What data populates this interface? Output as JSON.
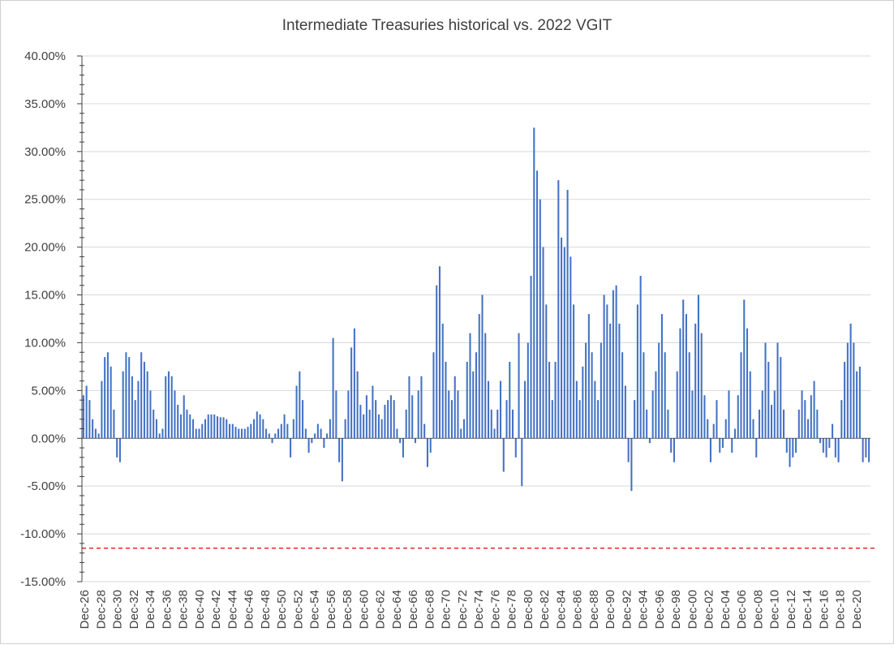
{
  "chart_data": {
    "type": "bar",
    "title": "Intermediate Treasuries historical vs. 2022 VGIT",
    "xlabel": "",
    "ylabel": "",
    "ylim": [
      -15,
      40
    ],
    "y_ticks": [
      "40.00%",
      "35.00%",
      "30.00%",
      "25.00%",
      "20.00%",
      "15.00%",
      "10.00%",
      "5.00%",
      "0.00%",
      "-5.00%",
      "-10.00%",
      "-15.00%"
    ],
    "x_tick_labels": [
      "Dec-26",
      "Dec-28",
      "Dec-30",
      "Dec-32",
      "Dec-34",
      "Dec-36",
      "Dec-38",
      "Dec-40",
      "Dec-42",
      "Dec-44",
      "Dec-46",
      "Dec-48",
      "Dec-50",
      "Dec-52",
      "Dec-54",
      "Dec-56",
      "Dec-58",
      "Dec-60",
      "Dec-62",
      "Dec-64",
      "Dec-66",
      "Dec-68",
      "Dec-70",
      "Dec-72",
      "Dec-74",
      "Dec-76",
      "Dec-78",
      "Dec-80",
      "Dec-82",
      "Dec-84",
      "Dec-86",
      "Dec-88",
      "Dec-90",
      "Dec-92",
      "Dec-94",
      "Dec-96",
      "Dec-98",
      "Dec-00",
      "Dec-02",
      "Dec-04",
      "Dec-06",
      "Dec-08",
      "Dec-10",
      "Dec-12",
      "Dec-14",
      "Dec-16",
      "Dec-18",
      "Dec-20"
    ],
    "grid": true,
    "legend": "none",
    "bar_color": "#4472c4",
    "reference_line": {
      "value": -11.5,
      "color": "#e00000",
      "style": "dashed"
    },
    "series": [
      {
        "frequency": "semiannual",
        "start": "Dec-26",
        "values": [
          4.5,
          5.5,
          4.0,
          2.0,
          1.0,
          0.5,
          6.0,
          8.5,
          9.0,
          7.5,
          3.0,
          -2.0,
          -2.5,
          7.0,
          9.0,
          8.5,
          6.5,
          4.0,
          6.0,
          9.0,
          8.0,
          7.0,
          5.0,
          3.0,
          2.0,
          0.5,
          1.0,
          6.5,
          7.0,
          6.5,
          5.0,
          3.5,
          2.5,
          4.5,
          3.0,
          2.5,
          2.0,
          1.0,
          1.0,
          1.5,
          2.0,
          2.5,
          2.5,
          2.5,
          2.3,
          2.2,
          2.2,
          2.0,
          1.5,
          1.5,
          1.2,
          1.0,
          1.0,
          1.0,
          1.2,
          1.5,
          2.0,
          2.8,
          2.5,
          2.0,
          1.0,
          0.5,
          -0.5,
          0.5,
          1.0,
          1.5,
          2.5,
          1.5,
          -2.0,
          2.0,
          5.5,
          7.0,
          4.0,
          1.0,
          -1.5,
          -0.5,
          0.5,
          1.5,
          1.0,
          -1.0,
          0.5,
          2.0,
          10.5,
          5.0,
          -2.5,
          -4.5,
          2.0,
          5.0,
          9.5,
          11.5,
          7.0,
          3.5,
          2.5,
          4.5,
          3.0,
          5.5,
          4.0,
          2.5,
          2.0,
          3.5,
          4.0,
          4.5,
          4.0,
          1.0,
          -0.5,
          -2.0,
          3.0,
          6.5,
          4.5,
          -0.5,
          5.0,
          6.5,
          1.5,
          -3.0,
          -1.5,
          9.0,
          16.0,
          18.0,
          12.0,
          8.0,
          5.0,
          4.0,
          6.5,
          5.0,
          1.0,
          2.0,
          8.0,
          11.0,
          7.0,
          9.0,
          13.0,
          15.0,
          11.0,
          6.0,
          3.0,
          1.0,
          3.0,
          6.0,
          -3.5,
          4.0,
          8.0,
          3.0,
          -2.0,
          11.0,
          -5.0,
          6.0,
          10.0,
          17.0,
          32.5,
          28.0,
          25.0,
          20.0,
          14.0,
          8.0,
          4.0,
          8.0,
          27.0,
          21.0,
          20.0,
          26.0,
          19.0,
          14.0,
          6.0,
          4.0,
          7.5,
          10.0,
          13.0,
          9.0,
          6.0,
          4.0,
          10.0,
          15.0,
          14.0,
          12.0,
          15.5,
          16.0,
          12.0,
          9.0,
          5.5,
          -2.5,
          -5.5,
          4.0,
          14.0,
          17.0,
          9.0,
          3.0,
          -0.5,
          5.0,
          7.0,
          10.0,
          13.0,
          9.0,
          3.0,
          -1.5,
          -2.5,
          7.0,
          11.5,
          14.5,
          13.0,
          9.0,
          5.0,
          12.0,
          15.0,
          11.0,
          4.5,
          2.0,
          -2.5,
          1.5,
          4.0,
          -1.5,
          -1.0,
          2.0,
          5.0,
          -1.5,
          1.0,
          4.5,
          9.0,
          14.5,
          11.5,
          7.0,
          2.0,
          -2.0,
          3.0,
          5.0,
          10.0,
          8.0,
          3.5,
          5.0,
          10.0,
          8.5,
          3.0,
          -1.5,
          -3.0,
          -2.0,
          -1.5,
          3.0,
          5.0,
          4.0,
          2.0,
          4.5,
          6.0,
          3.0,
          -0.5,
          -1.5,
          -2.0,
          -1.0,
          1.5,
          -2.0,
          -2.5,
          4.0,
          8.0,
          10.0,
          12.0,
          10.0,
          7.0,
          7.5,
          -2.5,
          -2.0,
          -2.5
        ]
      }
    ]
  }
}
